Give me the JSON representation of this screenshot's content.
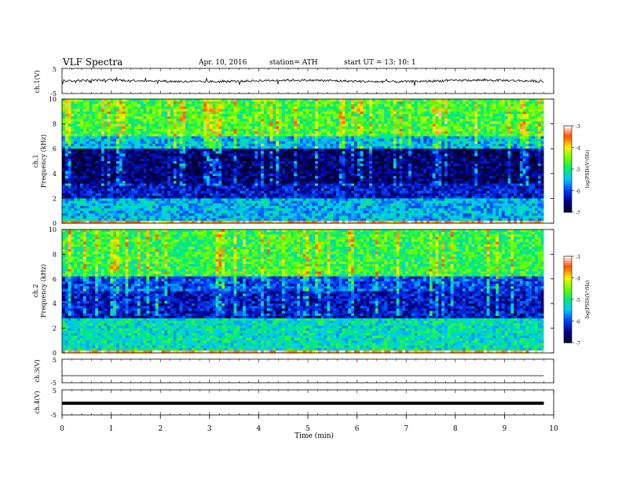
{
  "header": {
    "title": "VLF  Spectra",
    "date": "Apr. 10, 2016",
    "station": "station= ATH",
    "start": "start  UT  =   13: 10: 1"
  },
  "chart_data": [
    {
      "type": "line",
      "panel": "ch1-waveform",
      "ylabel": "ch.1(V)",
      "ylim": [
        -5,
        5
      ],
      "yticks": [
        "5",
        "-5"
      ],
      "xlim": [
        0,
        10
      ],
      "data_extent_min": [
        0,
        9.8
      ],
      "description": "noisy waveform fluctuating around about 0 V with spikes up to ~+1.5 V and down to ~-1.5 V"
    },
    {
      "type": "heatmap",
      "panel": "ch1-spectrogram",
      "ylabel": "ch.1\nFrequency (kHz)",
      "ylim": [
        0,
        10
      ],
      "yticks": [
        "0",
        "2",
        "4",
        "6",
        "8",
        "10"
      ],
      "xlim": [
        0,
        10
      ],
      "colorbar": {
        "label": "log(PSD)(V²/Hz)",
        "ticks": [
          "-3",
          "-4",
          "-5",
          "-6",
          "-7"
        ],
        "range": [
          -7,
          -3
        ]
      },
      "bands": [
        {
          "f_khz": [
            0,
            0.2
          ],
          "logpsd": -3.5
        },
        {
          "f_khz": [
            0.2,
            2.0
          ],
          "logpsd": -5.5
        },
        {
          "f_khz": [
            2.0,
            3.2
          ],
          "logpsd": -6.3
        },
        {
          "f_khz": [
            3.2,
            6.0
          ],
          "logpsd": -6.7
        },
        {
          "f_khz": [
            6.0,
            7.0
          ],
          "logpsd": -5.5
        },
        {
          "f_khz": [
            7.0,
            10.0
          ],
          "logpsd": -4.7
        }
      ]
    },
    {
      "type": "heatmap",
      "panel": "ch2-spectrogram",
      "ylabel": "ch.2\nFrequency (kHz)",
      "ylim": [
        0,
        10
      ],
      "yticks": [
        "0",
        "2",
        "4",
        "6",
        "8",
        "10"
      ],
      "xlim": [
        0,
        10
      ],
      "colorbar": {
        "label": "log(PSD)(V²/Hz)",
        "ticks": [
          "-3",
          "-4",
          "-5",
          "-6",
          "-7"
        ],
        "range": [
          -7,
          -3
        ]
      },
      "bands": [
        {
          "f_khz": [
            0,
            0.2
          ],
          "logpsd": -3.5
        },
        {
          "f_khz": [
            0.2,
            2.8
          ],
          "logpsd": -5.2
        },
        {
          "f_khz": [
            2.8,
            5.0
          ],
          "logpsd": -6.3
        },
        {
          "f_khz": [
            5.0,
            6.2
          ],
          "logpsd": -6.0
        },
        {
          "f_khz": [
            6.2,
            10.0
          ],
          "logpsd": -4.8
        }
      ]
    },
    {
      "type": "line",
      "panel": "ch3-waveform",
      "ylabel": "ch.3(V)",
      "ylim": [
        -5,
        5
      ],
      "yticks": [
        "5",
        "-5"
      ],
      "xlim": [
        0,
        10
      ],
      "data_extent_min": [
        0,
        9.8
      ],
      "description": "flat line near 0 V"
    },
    {
      "type": "line",
      "panel": "ch4-waveform",
      "ylabel": "ch.4(V)",
      "ylim": [
        -5,
        5
      ],
      "yticks": [
        "5",
        "-5"
      ],
      "xlim": [
        0,
        10
      ],
      "data_extent_min": [
        0,
        9.8
      ],
      "description": "thick band near 0 V"
    }
  ],
  "xaxis": {
    "label": "Time  (min)",
    "ticks": [
      "0",
      "1",
      "2",
      "3",
      "4",
      "5",
      "6",
      "7",
      "8",
      "9",
      "10"
    ]
  }
}
